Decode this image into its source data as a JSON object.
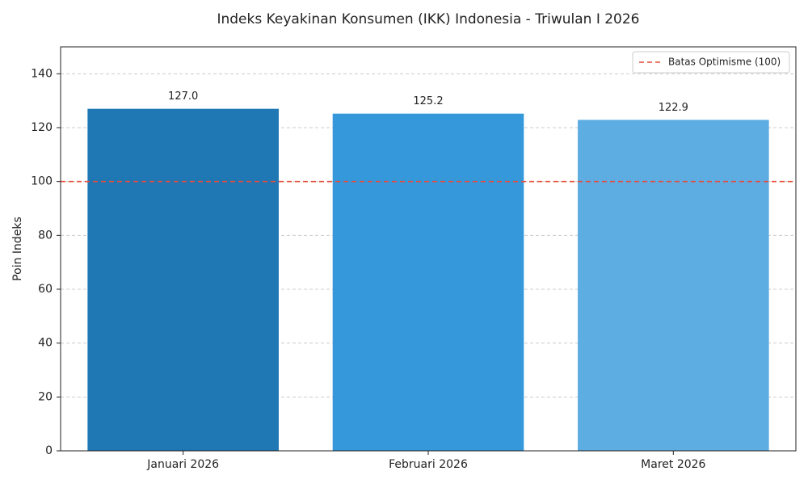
{
  "chart_data": {
    "type": "bar",
    "title": "Indeks Keyakinan Konsumen (IKK) Indonesia - Triwulan I 2026",
    "ylabel": "Poin Indeks",
    "categories": [
      "Januari 2026",
      "Februari 2026",
      "Maret 2026"
    ],
    "values": [
      127.0,
      125.2,
      122.9
    ],
    "value_labels": [
      "127.0",
      "125.2",
      "122.9"
    ],
    "colors": [
      "#1f77b4",
      "#3498db",
      "#5dade2"
    ],
    "ylim": [
      0,
      150
    ],
    "yticks": [
      0,
      20,
      40,
      60,
      80,
      100,
      120,
      140
    ],
    "grid": true,
    "reference_line": {
      "value": 100,
      "label": "Batas Optimisme (100)",
      "color": "#e74c3c"
    },
    "legend_position": "upper right"
  }
}
